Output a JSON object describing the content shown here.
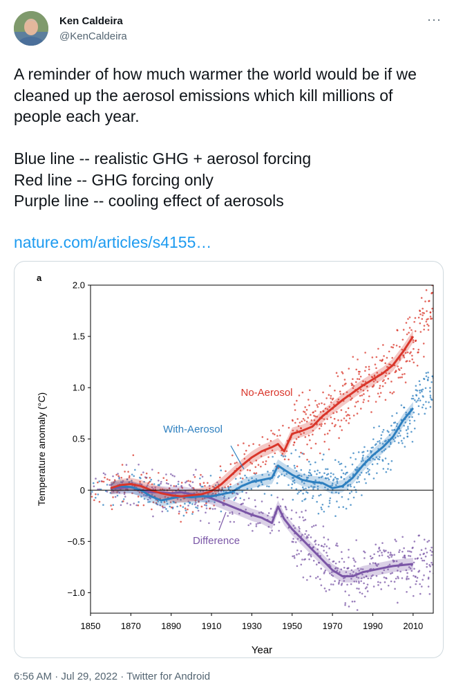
{
  "author": {
    "name": "Ken Caldeira",
    "handle": "@KenCaldeira",
    "more_label": "···"
  },
  "tweet": {
    "text": "A reminder of how much warmer the world would be if we cleaned up the aerosol emissions which kill millions of people each year.\n\nBlue line -- realistic GHG + aerosol forcing\nRed line -- GHG forcing only\nPurple line -- cooling effect of aerosols",
    "link": "nature.com/articles/s4155…",
    "timestamp": "6:56 AM · Jul 29, 2022 · Twitter for Android"
  },
  "colors": {
    "red": "#d9352a",
    "blue": "#2d7fbf",
    "purple": "#7a55a6",
    "link": "#1d9bf0"
  },
  "chart_data": {
    "type": "line",
    "panel_label": "a",
    "xlabel": "Year",
    "ylabel": "Temperature anomaly (°C)",
    "xlim": [
      1850,
      2020
    ],
    "ylim": [
      -1.2,
      2.0
    ],
    "xticks": [
      1850,
      1870,
      1890,
      1910,
      1930,
      1950,
      1970,
      1990,
      2010
    ],
    "yticks": [
      {
        "v": 2.0,
        "label": "2.0"
      },
      {
        "v": 1.5,
        "label": "1.5"
      },
      {
        "v": 1.0,
        "label": "1.0"
      },
      {
        "v": 0.5,
        "label": "0.5"
      },
      {
        "v": 0,
        "label": "0"
      },
      {
        "v": -0.5,
        "label": "−0.5"
      },
      {
        "v": -1.0,
        "label": "−1.0"
      }
    ],
    "series": [
      {
        "name": "No-Aerosol",
        "color": "#d9352a",
        "x": [
          1860,
          1865,
          1870,
          1875,
          1880,
          1885,
          1890,
          1895,
          1900,
          1905,
          1910,
          1915,
          1920,
          1925,
          1930,
          1935,
          1940,
          1943,
          1946,
          1950,
          1955,
          1960,
          1965,
          1970,
          1975,
          1980,
          1985,
          1990,
          1995,
          2000,
          2005,
          2010
        ],
        "y": [
          0.02,
          0.05,
          0.06,
          0.04,
          0.0,
          -0.03,
          -0.05,
          -0.06,
          -0.05,
          -0.04,
          -0.01,
          0.06,
          0.15,
          0.24,
          0.32,
          0.38,
          0.42,
          0.45,
          0.38,
          0.55,
          0.58,
          0.62,
          0.72,
          0.8,
          0.88,
          0.95,
          1.02,
          1.08,
          1.14,
          1.22,
          1.35,
          1.5
        ]
      },
      {
        "name": "With-Aerosol",
        "color": "#2d7fbf",
        "x": [
          1860,
          1865,
          1870,
          1875,
          1880,
          1885,
          1890,
          1895,
          1900,
          1905,
          1910,
          1915,
          1920,
          1925,
          1930,
          1935,
          1940,
          1943,
          1946,
          1950,
          1955,
          1960,
          1965,
          1970,
          1975,
          1980,
          1985,
          1990,
          1995,
          2000,
          2005,
          2010
        ],
        "y": [
          0.02,
          0.04,
          0.03,
          0.0,
          -0.06,
          -0.1,
          -0.08,
          -0.06,
          -0.07,
          -0.06,
          -0.06,
          -0.04,
          -0.02,
          0.04,
          0.08,
          0.1,
          0.12,
          0.24,
          0.2,
          0.15,
          0.1,
          0.08,
          0.07,
          0.02,
          0.04,
          0.12,
          0.24,
          0.34,
          0.42,
          0.52,
          0.68,
          0.8
        ]
      },
      {
        "name": "Difference",
        "color": "#7a55a6",
        "x": [
          1860,
          1865,
          1870,
          1875,
          1880,
          1885,
          1890,
          1895,
          1900,
          1905,
          1910,
          1915,
          1920,
          1925,
          1930,
          1935,
          1940,
          1943,
          1946,
          1950,
          1955,
          1960,
          1965,
          1970,
          1975,
          1980,
          1985,
          1990,
          1995,
          2000,
          2005,
          2010
        ],
        "y": [
          0.02,
          0.02,
          0.03,
          0.0,
          -0.02,
          -0.02,
          -0.03,
          -0.02,
          -0.04,
          -0.05,
          -0.08,
          -0.12,
          -0.16,
          -0.2,
          -0.24,
          -0.27,
          -0.32,
          -0.16,
          -0.28,
          -0.38,
          -0.48,
          -0.58,
          -0.68,
          -0.78,
          -0.84,
          -0.84,
          -0.8,
          -0.78,
          -0.76,
          -0.74,
          -0.73,
          -0.72
        ]
      }
    ]
  }
}
